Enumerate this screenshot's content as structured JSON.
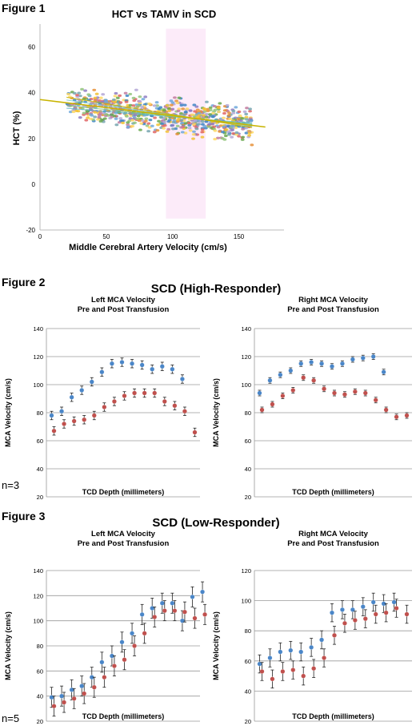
{
  "figure1": {
    "label": "Figure 1"
  },
  "figure2": {
    "label": "Figure 2",
    "title": "SCD (High-Responder)",
    "n_label": "n=3"
  },
  "figure3": {
    "label": "Figure 3",
    "title": "SCD (Low-Responder)",
    "n_label": "n=5"
  },
  "colors": {
    "pre": "#4a86c8",
    "post": "#c0504d",
    "grid": "#9a9a9a",
    "fit_line": "#c8b400",
    "scatter_palette": [
      "#e06666",
      "#6aa84f",
      "#3d85c6",
      "#f1c232",
      "#8e7cc3",
      "#76a5af",
      "#e69138",
      "#c27ba0",
      "#93c47d",
      "#6fa8dc",
      "#ffd966",
      "#b4a7d6"
    ]
  },
  "chart_data": [
    {
      "id": "fig1",
      "type": "scatter",
      "title": "HCT vs TAMV in SCD",
      "xlabel": "Middle Cerebral Artery Velocity (cm/s)",
      "ylabel": "HCT (%)",
      "xlim": [
        0,
        175
      ],
      "ylim": [
        -20,
        70
      ],
      "xticks": [
        0,
        50,
        100,
        150
      ],
      "yticks": [
        -20,
        0,
        20,
        40,
        60
      ],
      "grid": false,
      "fit_line": {
        "x": [
          0,
          170
        ],
        "y": [
          37,
          25
        ]
      },
      "cloud": {
        "x_range": [
          20,
          160
        ],
        "y_center_at_x0": 37,
        "slope": -0.07,
        "y_spread": 7
      }
    },
    {
      "id": "fig2-left",
      "type": "scatter",
      "title": [
        "Left MCA Velocity",
        "Pre and Post Transfusion"
      ],
      "xlabel": "TCD Depth (millimeters)",
      "ylabel": "MCA Velocity (cm/s)",
      "ylim": [
        20,
        140
      ],
      "yticks": [
        20,
        40,
        60,
        80,
        100,
        120,
        140
      ],
      "grid": true,
      "error_bar": 3,
      "series": [
        {
          "values": [
            78,
            81,
            91,
            96,
            102,
            109,
            115,
            116,
            115,
            114,
            111,
            113,
            111,
            104
          ]
        },
        {
          "values": [
            67,
            72,
            74,
            75,
            78,
            84,
            88,
            92,
            94,
            94,
            94,
            88,
            85,
            81,
            66
          ]
        }
      ]
    },
    {
      "id": "fig2-right",
      "type": "scatter",
      "title": [
        "Right MCA Velocity",
        "Pre and Post Transfusion"
      ],
      "xlabel": "TCD Depth (millimeters)",
      "ylabel": "MCA Velocity (cm/s)",
      "ylim": [
        20,
        140
      ],
      "yticks": [
        20,
        40,
        60,
        80,
        100,
        120,
        140
      ],
      "grid": true,
      "error_bar": 2,
      "series": [
        {
          "values": [
            94,
            103,
            107,
            110,
            115,
            116,
            115,
            113,
            115,
            118,
            119,
            120,
            109
          ]
        },
        {
          "values": [
            82,
            86,
            92,
            96,
            105,
            103,
            97,
            94,
            93,
            95,
            94,
            89,
            82,
            77,
            78
          ]
        }
      ]
    },
    {
      "id": "fig3-left",
      "type": "scatter",
      "title": [
        "Left MCA Velocity",
        "Pre and Post Transfusion"
      ],
      "xlabel": "TCD Depth (millimeters)",
      "ylabel": "MCA Velocity (cm/s)",
      "ylim": [
        20,
        140
      ],
      "yticks": [
        20,
        40,
        60,
        80,
        100,
        120,
        140
      ],
      "grid": true,
      "error_bar": 8,
      "series": [
        {
          "values": [
            39,
            40,
            45,
            48,
            55,
            67,
            72,
            83,
            90,
            105,
            110,
            114,
            114,
            100,
            119,
            123
          ]
        },
        {
          "values": [
            32,
            35,
            38,
            42,
            47,
            55,
            64,
            69,
            80,
            90,
            103,
            108,
            108,
            107,
            102,
            105
          ]
        }
      ]
    },
    {
      "id": "fig3-right",
      "type": "scatter",
      "title": [
        "Right MCA Velocity",
        "Pre and Post Transfusion"
      ],
      "xlabel": "TCD Depth (millimeters)",
      "ylabel": "MCA Velocity (cm/s)",
      "ylim": [
        20,
        120
      ],
      "yticks": [
        20,
        40,
        60,
        80,
        100,
        120
      ],
      "grid": true,
      "error_bar": 6,
      "series": [
        {
          "values": [
            58,
            62,
            66,
            67,
            66,
            69,
            74,
            92,
            94,
            94,
            96,
            99,
            98,
            99
          ]
        },
        {
          "values": [
            53,
            48,
            53,
            54,
            50,
            55,
            62,
            77,
            85,
            87,
            88,
            91,
            92,
            95,
            91
          ]
        }
      ]
    }
  ]
}
